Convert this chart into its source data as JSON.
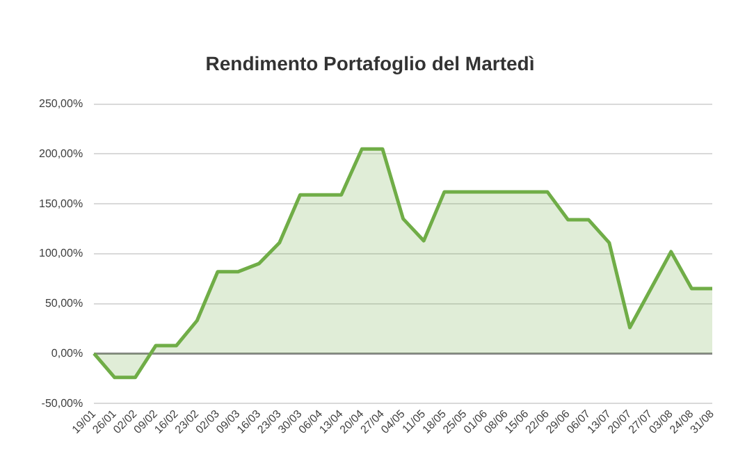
{
  "chart_data": {
    "type": "area",
    "title": "Rendimento Portafoglio del Martedì",
    "categories": [
      "19/01",
      "26/01",
      "02/02",
      "09/02",
      "16/02",
      "23/02",
      "02/03",
      "09/03",
      "16/03",
      "23/03",
      "30/03",
      "06/04",
      "13/04",
      "20/04",
      "27/04",
      "04/05",
      "11/05",
      "18/05",
      "25/05",
      "01/06",
      "08/06",
      "15/06",
      "22/06",
      "29/06",
      "06/07",
      "13/07",
      "20/07",
      "27/07",
      "03/08",
      "24/08",
      "31/08"
    ],
    "series": [
      {
        "color": "#70ad47",
        "values": [
          0,
          -24,
          -24,
          8,
          8,
          33,
          82,
          82,
          90,
          111,
          159,
          159,
          159,
          205,
          205,
          135,
          113,
          162,
          162,
          162,
          162,
          162,
          162,
          134,
          134,
          111,
          26,
          64,
          102,
          65,
          65
        ]
      }
    ],
    "ylim": [
      -50,
      250
    ],
    "yticks": [
      {
        "value": -50,
        "label": "-50,00%"
      },
      {
        "value": 0,
        "label": "0,00%"
      },
      {
        "value": 50,
        "label": "50,00%"
      },
      {
        "value": 100,
        "label": "100,00%"
      },
      {
        "value": 150,
        "label": "150,00%"
      },
      {
        "value": 200,
        "label": "200,00%"
      },
      {
        "value": 250,
        "label": "250,00%"
      }
    ],
    "grid": "y",
    "legend": false
  }
}
